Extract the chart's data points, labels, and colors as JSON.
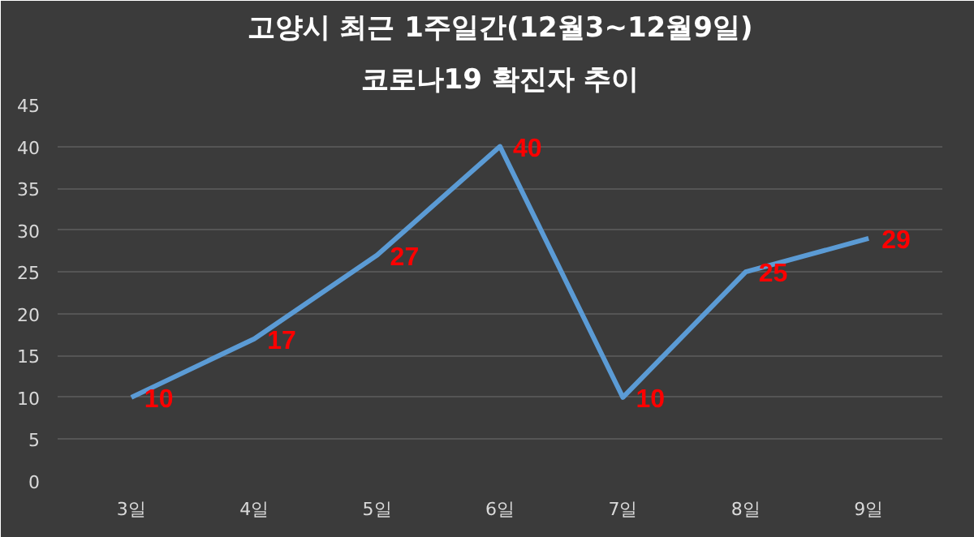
{
  "chart_data": {
    "type": "line",
    "title": "고양시 최근 1주일간(12월3~12월9일)",
    "subtitle": "코로나19 확진자 추이",
    "categories": [
      "3일",
      "4일",
      "5일",
      "6일",
      "7일",
      "8일",
      "9일"
    ],
    "series": [
      {
        "color": "#5b9bd5",
        "values": [
          10,
          17,
          27,
          40,
          10,
          25,
          29
        ]
      }
    ],
    "ylim": [
      0,
      45
    ],
    "yticks": [
      0,
      5,
      10,
      15,
      20,
      25,
      30,
      35,
      40,
      45
    ],
    "grid": "y",
    "data_labels": true,
    "marker": "none",
    "line_style": "solid"
  }
}
